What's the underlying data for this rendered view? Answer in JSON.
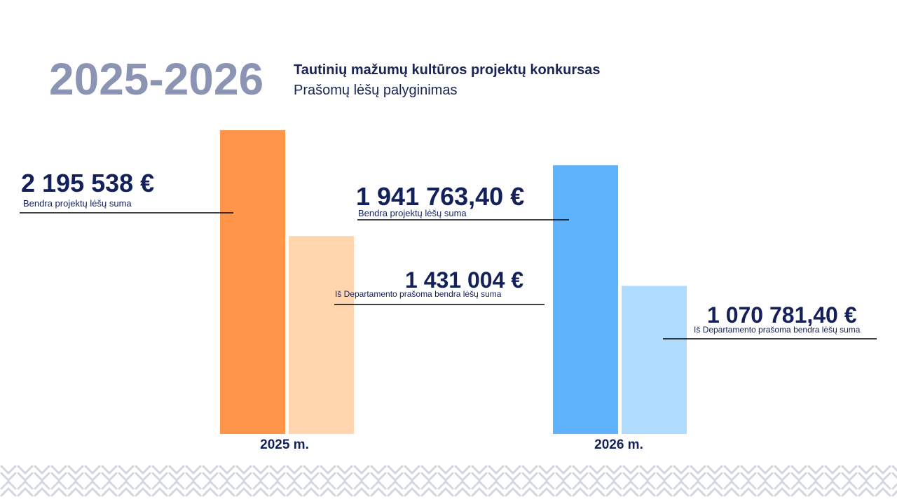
{
  "header": {
    "year_range": "2025-2026",
    "title": "Tautinių mažumų kultūros projektų konkursas",
    "subtitle": "Prašomų lėšų palyginimas"
  },
  "chart_data": {
    "type": "bar",
    "categories": [
      "2025 m.",
      "2026 m."
    ],
    "series": [
      {
        "values": [
          2195538,
          1941763.4
        ]
      },
      {
        "values": [
          1431004,
          1070781.4
        ]
      }
    ],
    "data_labels": [
      {
        "category": "2025 m.",
        "value_text": "2 195 538 €",
        "caption": "Bendra projektų lėšų suma"
      },
      {
        "category": "2025 m.",
        "value_text": "1 431 004 €",
        "caption": "Iš Departamento prašoma bendra lėšų suma"
      },
      {
        "category": "2026 m.",
        "value_text": "1 941 763,40 €",
        "caption": "Bendra projektų lėšų suma"
      },
      {
        "category": "2026 m.",
        "value_text": "1 070 781,40 €",
        "caption": "Iš Departamento prašoma bendra lėšų suma"
      }
    ],
    "colors": {
      "2025": [
        "#ff9549",
        "#ffd5ae"
      ],
      "2026": [
        "#5fb2fc",
        "#afdbff"
      ]
    },
    "grid": false,
    "legend": "none"
  },
  "decor": {
    "pattern_color": "#d4d7e2"
  }
}
